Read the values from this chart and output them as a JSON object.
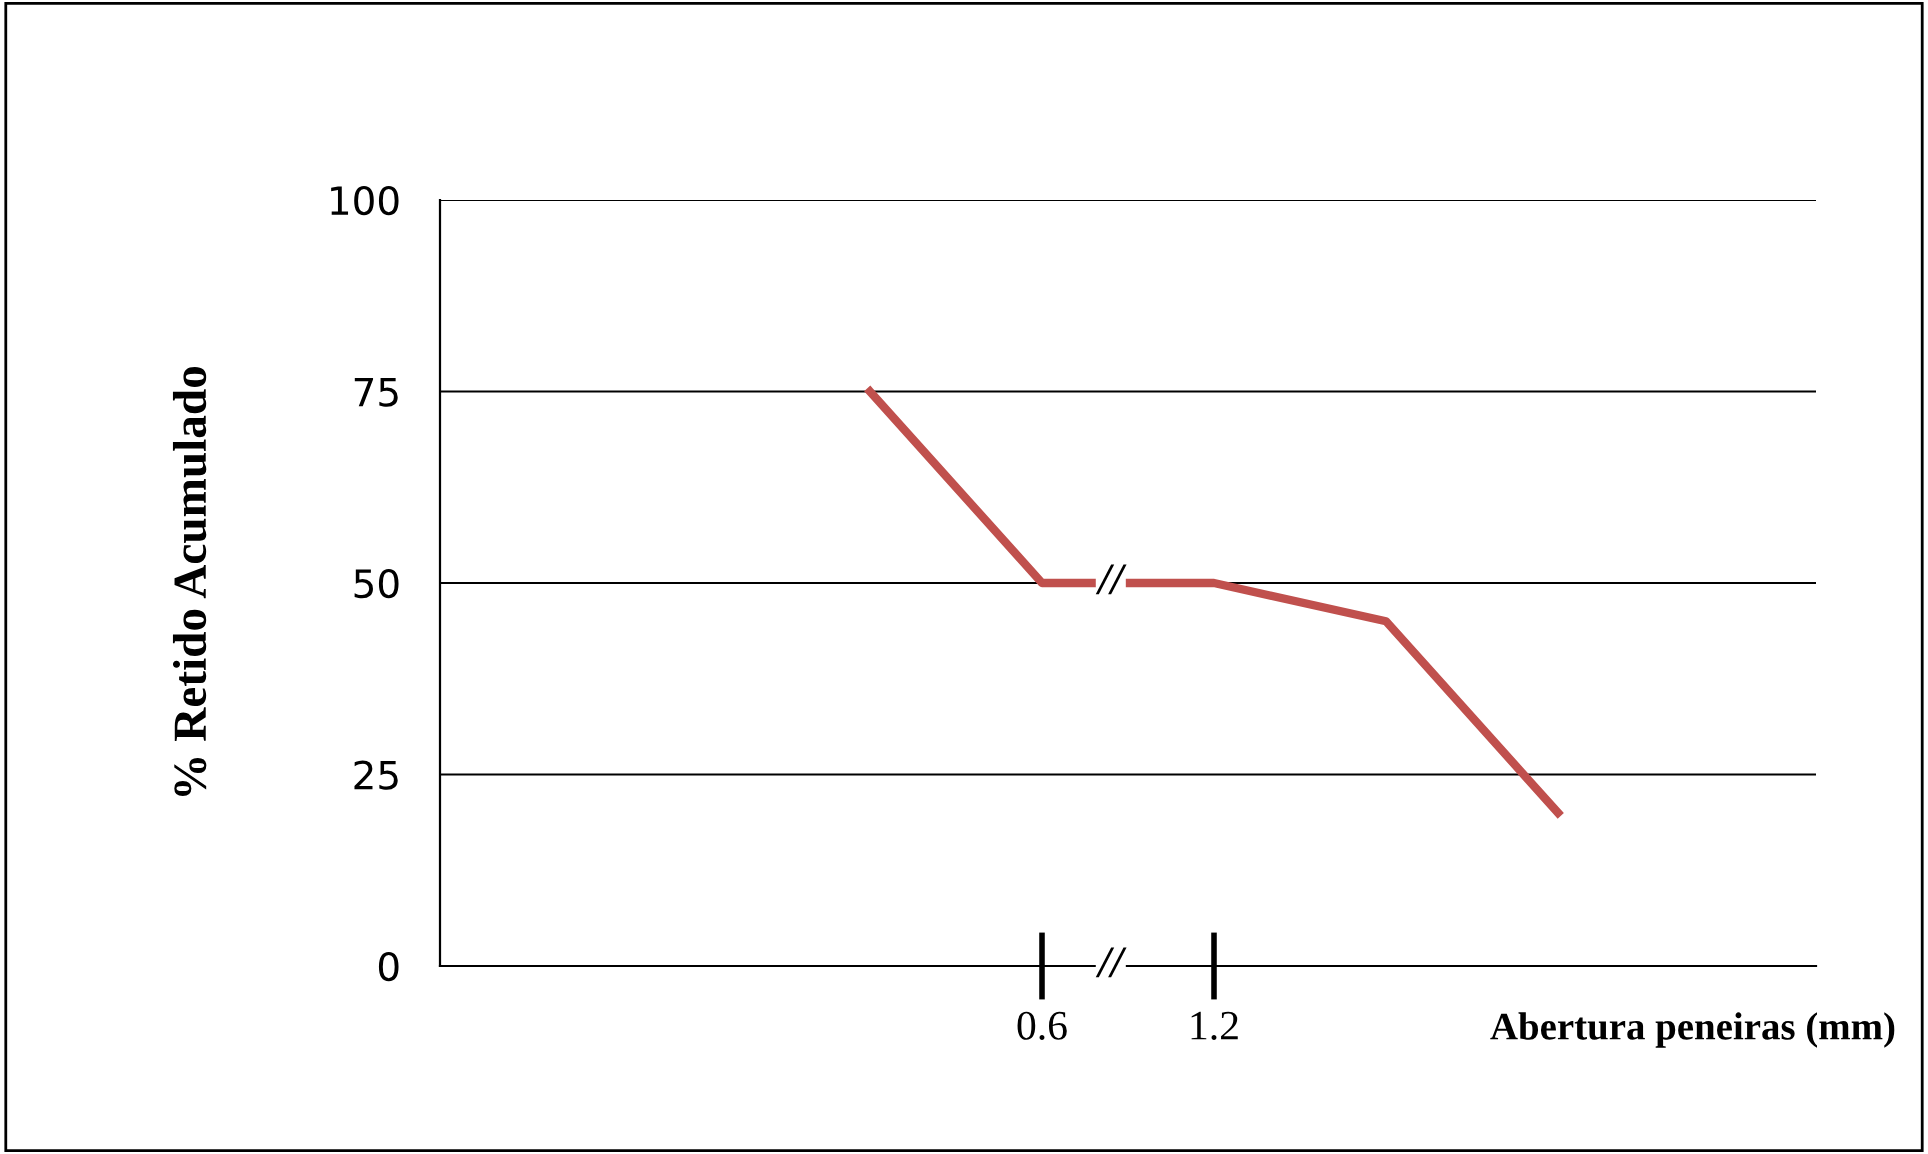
{
  "chart_data": {
    "type": "line",
    "categories": [
      null,
      null,
      null,
      "0.6",
      "1.2",
      null,
      null,
      null
    ],
    "series": [
      {
        "color": "#c0504d",
        "values": [
          null,
          null,
          75,
          50,
          50,
          45,
          20,
          null
        ]
      }
    ],
    "ylabel": "% Retido Acumulado",
    "xlabel": "Abertura peneiras (mm)",
    "annotations": [
      "//",
      "//"
    ],
    "ylim": [
      0,
      100
    ],
    "yticks": [
      0,
      25,
      50,
      75,
      100
    ],
    "grid": "y",
    "marker": "none",
    "line_style": "solid",
    "legend": false
  }
}
